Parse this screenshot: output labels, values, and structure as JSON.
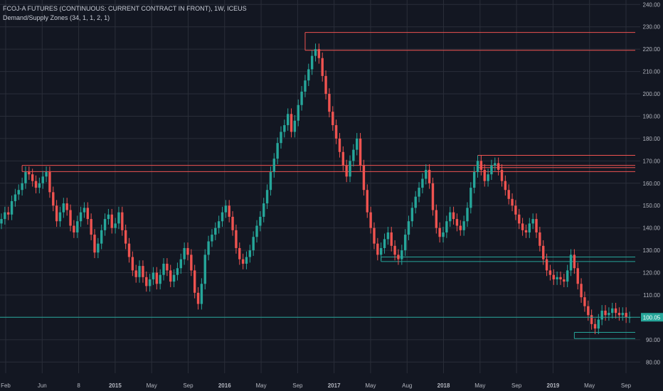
{
  "legend": {
    "symbol_line": "FCOJ-A FUTURES (CONTINUOUS: CURRENT CONTRACT IN FRONT), 1W, ICEUS",
    "indicator_line": "Demand/Supply Zones (34, 1, 1, 2, 1)"
  },
  "colors": {
    "background": "#131722",
    "grid": "#2a2e39",
    "up": "#26a69a",
    "down": "#ef5350",
    "supply_line": "#ef5350",
    "demand_line": "#26a69a",
    "price_tag": "#26a69a",
    "axis_text": "#b2b5be"
  },
  "chart_data": {
    "type": "candlestick",
    "title": "FCOJ-A FUTURES (CONTINUOUS: CURRENT CONTRACT IN FRONT), 1W, ICEUS",
    "interval": "1W",
    "y_axis_ticks": [
      80,
      90,
      100,
      110,
      120,
      130,
      140,
      150,
      160,
      170,
      180,
      190,
      200,
      210,
      220,
      230,
      240
    ],
    "y_axis_labels": [
      "80.00",
      "90.00",
      "100.00",
      "110.00",
      "120.00",
      "130.00",
      "140.00",
      "150.00",
      "160.00",
      "170.00",
      "180.00",
      "190.00",
      "200.00",
      "210.00",
      "220.00",
      "230.00",
      "240.00"
    ],
    "ylim": [
      75,
      242
    ],
    "x_axis_labels": [
      "Feb",
      "Jun",
      "8",
      "2015",
      "May",
      "Sep",
      "2016",
      "May",
      "Sep",
      "2017",
      "May",
      "Aug",
      "2018",
      "May",
      "Sep",
      "2019",
      "May",
      "Sep"
    ],
    "last_price": 100.05,
    "last_price_label": "100.05",
    "supply_zones": [
      {
        "top": 227.5,
        "bottom": 219.5
      },
      {
        "top": 168.0,
        "bottom": 165.2
      },
      {
        "top": 172.5,
        "bottom": 167.0
      }
    ],
    "demand_zones": [
      {
        "top": 127.0,
        "bottom": 125.0
      },
      {
        "top": 93.3,
        "bottom": 90.5
      }
    ],
    "series": [
      {
        "name": "FCOJ-A weekly close",
        "values": [
          144,
          147,
          146,
          152,
          155,
          157,
          160,
          165,
          164,
          161,
          158,
          160,
          163,
          165,
          156,
          150,
          143,
          147,
          151,
          148,
          141,
          138,
          143,
          147,
          149,
          144,
          137,
          129,
          133,
          139,
          144,
          146,
          140,
          142,
          147,
          139,
          133,
          127,
          121,
          118,
          123,
          118,
          114,
          117,
          120,
          115,
          119,
          124,
          121,
          116,
          119,
          122,
          126,
          131,
          128,
          121,
          111,
          106,
          115,
          128,
          134,
          137,
          140,
          143,
          147,
          150,
          145,
          139,
          131,
          126,
          124,
          127,
          130,
          136,
          141,
          145,
          151,
          157,
          165,
          171,
          178,
          183,
          186,
          191,
          183,
          188,
          195,
          201,
          206,
          211,
          217,
          220,
          216,
          208,
          200,
          192,
          186,
          180,
          174,
          168,
          163,
          170,
          175,
          180,
          168,
          157,
          147,
          140,
          133,
          128,
          131,
          135,
          138,
          132,
          128,
          126,
          130,
          137,
          143,
          149,
          154,
          158,
          162,
          166,
          160,
          148,
          140,
          136,
          138,
          143,
          147,
          144,
          141,
          139,
          143,
          149,
          158,
          165,
          170,
          166,
          161,
          164,
          168,
          169,
          166,
          161,
          157,
          153,
          150,
          146,
          142,
          139,
          138,
          142,
          144,
          138,
          132,
          126,
          121,
          119,
          117,
          118,
          117,
          116,
          121,
          128,
          122,
          115,
          109,
          105,
          101,
          97,
          95,
          99,
          103,
          101,
          102,
          104,
          102,
          101,
          102,
          100,
          100.05
        ]
      }
    ]
  }
}
